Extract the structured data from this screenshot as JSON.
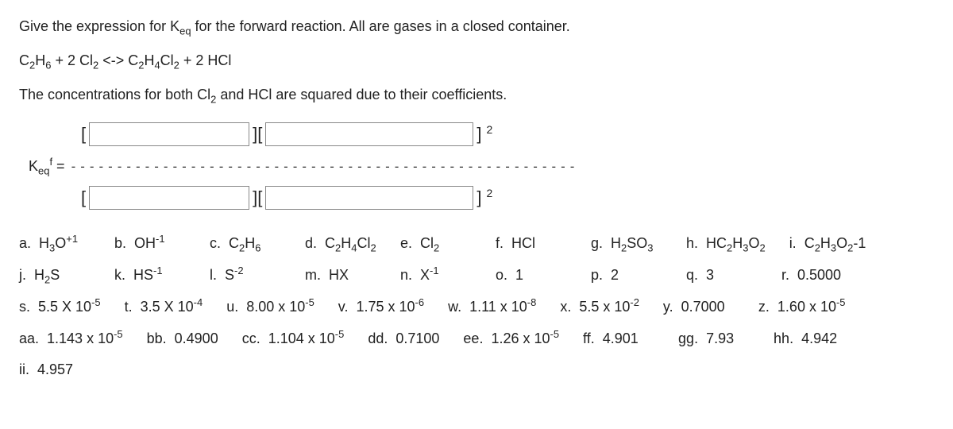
{
  "intro1": "Give the expression for K_eq for the forward reaction.  All are gases in a closed container.",
  "equation": "C2H6   +  2 Cl2  <->   C2H4Cl2  +  2 HCl",
  "intro2": "The concentrations for both Cl2 and HCl are squared due to their coefficients.",
  "keq_label": "K_eq_f = ",
  "sq": "2",
  "dash_count": 55,
  "choices": [
    {
      "k": "a.",
      "v": "H3O+1"
    },
    {
      "k": "b.",
      "v": "OH-1"
    },
    {
      "k": "c.",
      "v": "C2H6"
    },
    {
      "k": "d.",
      "v": "C2H4Cl2"
    },
    {
      "k": "e.",
      "v": "Cl2"
    },
    {
      "k": "f.",
      "v": "HCl"
    },
    {
      "k": "g.",
      "v": "H2SO3"
    },
    {
      "k": "h.",
      "v": "HC2H3O2"
    },
    {
      "k": "i.",
      "v": "C2H3O2-1"
    },
    {
      "k": "j.",
      "v": "H2S"
    },
    {
      "k": "k.",
      "v": "HS-1"
    },
    {
      "k": "l.",
      "v": "S-2"
    },
    {
      "k": "m.",
      "v": "HX"
    },
    {
      "k": "n.",
      "v": "X-1"
    },
    {
      "k": "o.",
      "v": "1"
    },
    {
      "k": "p.",
      "v": "2"
    },
    {
      "k": "q.",
      "v": "3"
    },
    {
      "k": "r.",
      "v": "0.5000"
    },
    {
      "k": "s.",
      "v": "5.5 X 10-5"
    },
    {
      "k": "t.",
      "v": "3.5 X 10-4"
    },
    {
      "k": "u.",
      "v": "8.00 x 10-5"
    },
    {
      "k": "v.",
      "v": "1.75 x 10-6"
    },
    {
      "k": "w.",
      "v": "1.11 x 10-8"
    },
    {
      "k": "x.",
      "v": "5.5 x 10-2"
    },
    {
      "k": "y.",
      "v": "0.7000"
    },
    {
      "k": "z.",
      "v": "1.60 x 10-5"
    },
    {
      "k": "aa.",
      "v": "1.143 x 10-5"
    },
    {
      "k": "bb.",
      "v": "0.4900"
    },
    {
      "k": "cc.",
      "v": "1.104 x 10-5"
    },
    {
      "k": "dd.",
      "v": "0.7100"
    },
    {
      "k": "ee.",
      "v": "1.26 x 10-5"
    },
    {
      "k": "ff.",
      "v": "4.901"
    },
    {
      "k": "gg.",
      "v": "7.93"
    },
    {
      "k": "hh.",
      "v": "4.942"
    },
    {
      "k": "ii.",
      "v": "4.957"
    }
  ]
}
